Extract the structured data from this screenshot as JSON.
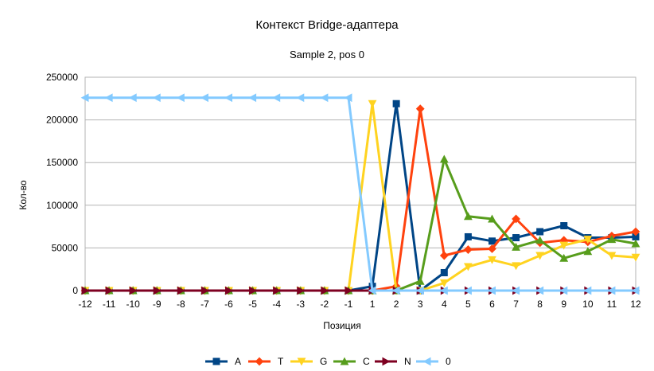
{
  "chart_data": {
    "type": "line",
    "title": "Контекст Bridge-адаптера",
    "subtitle": "Sample 2, pos 0",
    "xlabel": "Позиция",
    "ylabel": "Кол-во",
    "ylim": [
      0,
      250000
    ],
    "yticks": [
      "0",
      "50000",
      "100000",
      "150000",
      "200000",
      "250000"
    ],
    "yticks_values": [
      0,
      50000,
      100000,
      150000,
      200000,
      250000
    ],
    "grid": "horizontal",
    "legend": "bottom",
    "categories": [
      "-12",
      "-11",
      "-10",
      "-9",
      "-8",
      "-7",
      "-6",
      "-5",
      "-4",
      "-3",
      "-2",
      "-1",
      "1",
      "2",
      "3",
      "4",
      "5",
      "6",
      "7",
      "8",
      "9",
      "10",
      "11",
      "12"
    ],
    "series": [
      {
        "name": "A",
        "color": "#004586",
        "marker": "square",
        "values": [
          0,
          0,
          0,
          0,
          0,
          0,
          0,
          0,
          0,
          0,
          0,
          0,
          5000,
          219000,
          0,
          21000,
          63000,
          58000,
          62000,
          69000,
          76000,
          62000,
          62000,
          63000
        ]
      },
      {
        "name": "T",
        "color": "#ff420e",
        "marker": "diamond",
        "values": [
          0,
          0,
          0,
          0,
          0,
          0,
          0,
          0,
          0,
          0,
          0,
          0,
          0,
          5000,
          213000,
          41000,
          48000,
          49000,
          84000,
          56000,
          59000,
          57000,
          64000,
          69000
        ]
      },
      {
        "name": "G",
        "color": "#ffd320",
        "marker": "triangle-down",
        "values": [
          0,
          0,
          0,
          0,
          0,
          0,
          0,
          0,
          0,
          0,
          0,
          0,
          219000,
          0,
          0,
          9000,
          28000,
          36000,
          29000,
          41000,
          53000,
          60000,
          41000,
          39000
        ]
      },
      {
        "name": "C",
        "color": "#579d1c",
        "marker": "triangle-up",
        "values": [
          0,
          0,
          0,
          0,
          0,
          0,
          0,
          0,
          0,
          0,
          0,
          0,
          0,
          0,
          11000,
          154000,
          87000,
          84000,
          51000,
          59000,
          38000,
          46000,
          60000,
          55000
        ]
      },
      {
        "name": "N",
        "color": "#7e0021",
        "marker": "triangle-right",
        "values": [
          0,
          0,
          0,
          0,
          0,
          0,
          0,
          0,
          0,
          0,
          0,
          0,
          0,
          0,
          0,
          0,
          0,
          0,
          0,
          0,
          0,
          0,
          0,
          0
        ]
      },
      {
        "name": "0",
        "color": "#83caff",
        "marker": "triangle-left",
        "values": [
          226000,
          226000,
          226000,
          226000,
          226000,
          226000,
          226000,
          226000,
          226000,
          226000,
          226000,
          226000,
          0,
          0,
          0,
          0,
          0,
          0,
          0,
          0,
          0,
          0,
          0,
          0
        ]
      }
    ]
  }
}
